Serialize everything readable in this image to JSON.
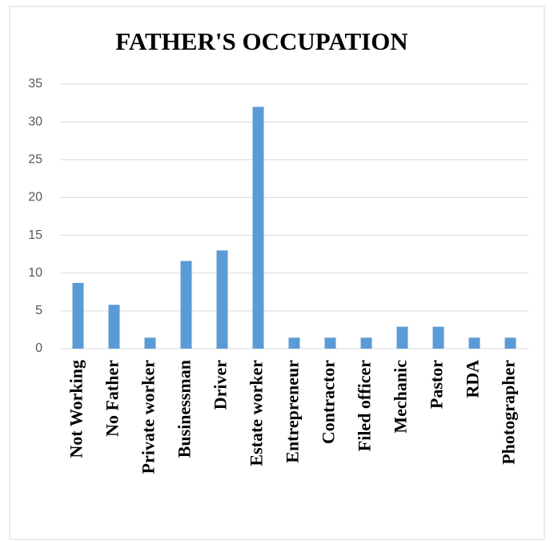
{
  "chart_data": {
    "type": "bar",
    "title": "FATHER'S OCCUPATION",
    "categories": [
      "Not Working",
      "No Father",
      "Private worker",
      "Businessman",
      "Driver",
      "Estate worker",
      "Entrepreneur",
      "Contractor",
      "Filed officer",
      "Mechanic",
      "Pastor",
      "RDA",
      "Photographer"
    ],
    "values": [
      8.7,
      5.8,
      1.45,
      11.6,
      13,
      32,
      1.45,
      1.45,
      1.45,
      2.9,
      2.9,
      1.45,
      1.45
    ],
    "color": "#5b9bd5",
    "ylim": [
      0,
      35
    ],
    "yticks": [
      0,
      5,
      10,
      15,
      20,
      25,
      30,
      35
    ],
    "grid": true
  }
}
